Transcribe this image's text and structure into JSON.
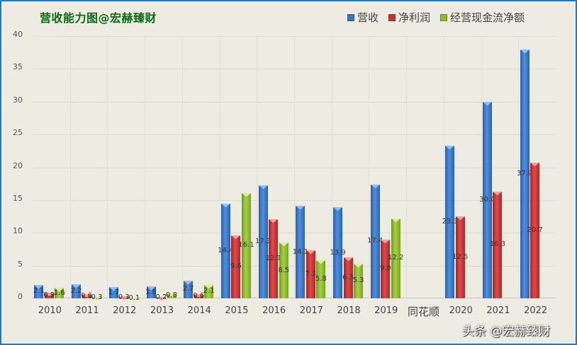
{
  "chart_data": {
    "type": "bar",
    "title": "营收能力图@宏赫臻财",
    "xlabel": "",
    "ylabel": "",
    "ylim": [
      0,
      40
    ],
    "yticks": [
      0,
      5,
      10,
      15,
      20,
      25,
      30,
      35,
      40
    ],
    "grid": true,
    "legend_position": "top-right",
    "categories": [
      "2010",
      "2011",
      "2012",
      "2013",
      "2014",
      "2015",
      "2016",
      "2017",
      "2018",
      "2019",
      "同花顺",
      "2020",
      "2021",
      "2022"
    ],
    "series": [
      {
        "name": "营收",
        "color": "#3a76c4",
        "values": [
          2.1,
          2.2,
          1.7,
          1.8,
          2.7,
          14.4,
          17.3,
          14.1,
          13.9,
          17.4,
          null,
          23.3,
          30.0,
          37.9
        ]
      },
      {
        "name": "净利润",
        "color": "#c83434",
        "values": [
          0.9,
          0.6,
          0.3,
          0.2,
          0.6,
          9.6,
          12.1,
          7.3,
          6.3,
          9.0,
          null,
          12.5,
          16.3,
          20.7
        ]
      },
      {
        "name": "经营现金流净额",
        "color": "#8cba30",
        "values": [
          1.6,
          0.3,
          0.1,
          0.8,
          2.1,
          16.1,
          8.5,
          5.8,
          5.3,
          12.2,
          null,
          null,
          null,
          null
        ]
      }
    ]
  },
  "watermark": "头条 @宏赫臻财"
}
